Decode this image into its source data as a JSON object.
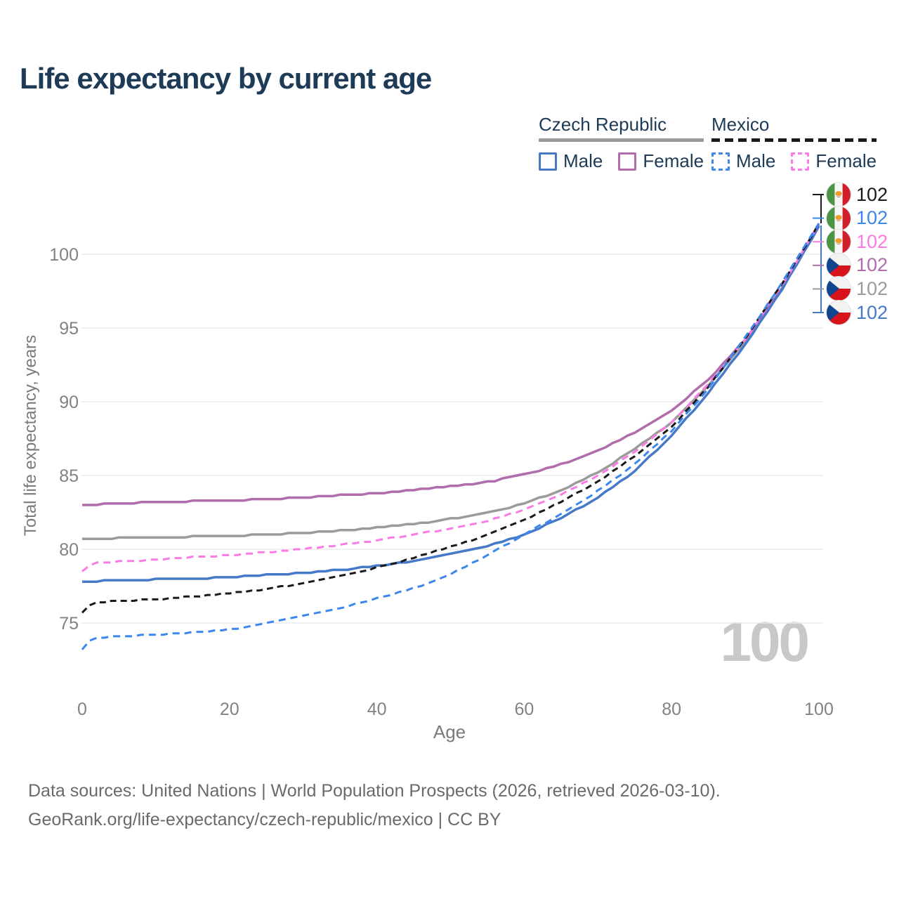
{
  "title": "Life expectancy by current age",
  "legend": {
    "groups": [
      {
        "label": "Czech Republic",
        "line_style": "solid",
        "underline_color": "#9b9b9b",
        "items": [
          {
            "label": "Male",
            "color": "#4679c8",
            "dashed": false
          },
          {
            "label": "Female",
            "color": "#b06cab",
            "dashed": false
          }
        ]
      },
      {
        "label": "Mexico",
        "line_style": "dashed",
        "underline_color": "#1a1a1a",
        "items": [
          {
            "label": "Male",
            "color": "#3c87ee",
            "dashed": true
          },
          {
            "label": "Female",
            "color": "#fb7be6",
            "dashed": true
          }
        ]
      }
    ]
  },
  "chart_data": {
    "type": "line",
    "title": "Life expectancy by current age",
    "xlabel": "Age",
    "ylabel": "Total life expectancy, years",
    "xlim": [
      0,
      100
    ],
    "ylim": [
      72.5,
      102.5
    ],
    "x_ticks": [
      0,
      20,
      40,
      60,
      80,
      100
    ],
    "y_ticks": [
      75,
      80,
      85,
      90,
      95,
      100
    ],
    "grid": "horizontal-only",
    "legend_position": "top-right",
    "watermark": "100",
    "series": [
      {
        "id": "czech-all",
        "name": "Czech Republic — Both sexes",
        "color": "#9b9b9b",
        "dashed": false,
        "points": [
          [
            0,
            80.7
          ],
          [
            5,
            80.75
          ],
          [
            10,
            80.8
          ],
          [
            15,
            80.85
          ],
          [
            20,
            80.9
          ],
          [
            25,
            81.0
          ],
          [
            30,
            81.1
          ],
          [
            35,
            81.25
          ],
          [
            40,
            81.45
          ],
          [
            45,
            81.7
          ],
          [
            50,
            82.05
          ],
          [
            55,
            82.45
          ],
          [
            60,
            83.1
          ],
          [
            65,
            84.0
          ],
          [
            70,
            85.2
          ],
          [
            75,
            86.8
          ],
          [
            80,
            88.6
          ],
          [
            85,
            91.1
          ],
          [
            90,
            94.1
          ],
          [
            95,
            97.7
          ],
          [
            100,
            101.95
          ]
        ]
      },
      {
        "id": "czech-female",
        "name": "Czech Republic — Female",
        "color": "#b06cab",
        "dashed": false,
        "points": [
          [
            0,
            83.0
          ],
          [
            5,
            83.1
          ],
          [
            10,
            83.2
          ],
          [
            15,
            83.25
          ],
          [
            20,
            83.3
          ],
          [
            25,
            83.4
          ],
          [
            30,
            83.5
          ],
          [
            35,
            83.65
          ],
          [
            40,
            83.8
          ],
          [
            45,
            84.0
          ],
          [
            50,
            84.25
          ],
          [
            55,
            84.55
          ],
          [
            60,
            85.05
          ],
          [
            65,
            85.75
          ],
          [
            70,
            86.7
          ],
          [
            75,
            87.9
          ],
          [
            80,
            89.4
          ],
          [
            85,
            91.5
          ],
          [
            90,
            94.2
          ],
          [
            95,
            97.7
          ],
          [
            100,
            102.0
          ]
        ]
      },
      {
        "id": "czech-male",
        "name": "Czech Republic — Male",
        "color": "#4679c8",
        "dashed": false,
        "points": [
          [
            0,
            77.8
          ],
          [
            5,
            77.9
          ],
          [
            10,
            77.95
          ],
          [
            15,
            78.0
          ],
          [
            20,
            78.1
          ],
          [
            25,
            78.25
          ],
          [
            30,
            78.4
          ],
          [
            35,
            78.6
          ],
          [
            40,
            78.85
          ],
          [
            45,
            79.2
          ],
          [
            50,
            79.65
          ],
          [
            55,
            80.2
          ],
          [
            60,
            81.0
          ],
          [
            65,
            82.1
          ],
          [
            70,
            83.5
          ],
          [
            75,
            85.3
          ],
          [
            80,
            87.7
          ],
          [
            85,
            90.6
          ],
          [
            90,
            93.9
          ],
          [
            95,
            97.6
          ],
          [
            100,
            101.9
          ]
        ]
      },
      {
        "id": "mexico-female",
        "name": "Mexico — Female",
        "color": "#fb7be6",
        "dashed": true,
        "points": [
          [
            0,
            78.5
          ],
          [
            1,
            78.9
          ],
          [
            2,
            79.05
          ],
          [
            5,
            79.15
          ],
          [
            10,
            79.3
          ],
          [
            15,
            79.45
          ],
          [
            20,
            79.6
          ],
          [
            25,
            79.8
          ],
          [
            30,
            80.0
          ],
          [
            35,
            80.3
          ],
          [
            40,
            80.6
          ],
          [
            45,
            81.0
          ],
          [
            50,
            81.4
          ],
          [
            55,
            81.9
          ],
          [
            60,
            82.7
          ],
          [
            65,
            83.7
          ],
          [
            70,
            85.0
          ],
          [
            75,
            86.6
          ],
          [
            80,
            88.6
          ],
          [
            85,
            91.2
          ],
          [
            90,
            94.2
          ],
          [
            95,
            97.9
          ],
          [
            100,
            102.0
          ]
        ]
      },
      {
        "id": "mexico-all",
        "name": "Mexico — Both sexes",
        "color": "#1a1a1a",
        "dashed": true,
        "points": [
          [
            0,
            75.7
          ],
          [
            1,
            76.2
          ],
          [
            2,
            76.4
          ],
          [
            5,
            76.5
          ],
          [
            10,
            76.6
          ],
          [
            15,
            76.8
          ],
          [
            20,
            77.0
          ],
          [
            25,
            77.3
          ],
          [
            30,
            77.7
          ],
          [
            35,
            78.2
          ],
          [
            40,
            78.75
          ],
          [
            45,
            79.4
          ],
          [
            50,
            80.15
          ],
          [
            55,
            80.95
          ],
          [
            60,
            82.0
          ],
          [
            65,
            83.2
          ],
          [
            70,
            84.6
          ],
          [
            75,
            86.3
          ],
          [
            80,
            88.3
          ],
          [
            85,
            91.0
          ],
          [
            90,
            94.3
          ],
          [
            95,
            98.0
          ],
          [
            100,
            102.05
          ]
        ]
      },
      {
        "id": "mexico-male",
        "name": "Mexico — Male",
        "color": "#3c87ee",
        "dashed": true,
        "points": [
          [
            0,
            73.2
          ],
          [
            1,
            73.8
          ],
          [
            2,
            74.0
          ],
          [
            5,
            74.1
          ],
          [
            10,
            74.2
          ],
          [
            15,
            74.35
          ],
          [
            20,
            74.55
          ],
          [
            25,
            74.95
          ],
          [
            30,
            75.45
          ],
          [
            35,
            76.0
          ],
          [
            40,
            76.65
          ],
          [
            45,
            77.35
          ],
          [
            50,
            78.3
          ],
          [
            55,
            79.6
          ],
          [
            60,
            81.0
          ],
          [
            65,
            82.4
          ],
          [
            70,
            83.95
          ],
          [
            75,
            85.75
          ],
          [
            80,
            88.0
          ],
          [
            85,
            90.9
          ],
          [
            90,
            94.35
          ],
          [
            95,
            98.05
          ],
          [
            100,
            102.1
          ]
        ]
      }
    ],
    "end_labels": [
      {
        "value": "102",
        "flag": "mexico",
        "color": "#1a1a1a",
        "series": "mexico-all"
      },
      {
        "value": "102",
        "flag": "mexico",
        "color": "#3c87ee",
        "series": "mexico-male"
      },
      {
        "value": "102",
        "flag": "mexico",
        "color": "#fb7be6",
        "series": "mexico-female"
      },
      {
        "value": "102",
        "flag": "czech",
        "color": "#b06cab",
        "series": "czech-female"
      },
      {
        "value": "102",
        "flag": "czech",
        "color": "#9b9b9b",
        "series": "czech-all"
      },
      {
        "value": "102",
        "flag": "czech",
        "color": "#4679c8",
        "series": "czech-male"
      }
    ]
  },
  "footer": {
    "line1": "Data sources: United Nations | World Population Prospects (2026, retrieved 2026-03-10).",
    "line2": "GeoRank.org/life-expectancy/czech-republic/mexico | CC BY"
  }
}
